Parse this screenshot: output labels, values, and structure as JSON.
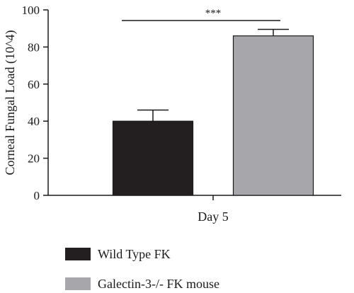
{
  "chart_data": {
    "type": "bar",
    "categories": [
      "Day 5"
    ],
    "ylabel": "Corneal Fungal Load (10^4)",
    "xlabel": "",
    "ylim": [
      0,
      100
    ],
    "yticks": [
      0,
      20,
      40,
      60,
      80,
      100
    ],
    "series": [
      {
        "name": "Wild Type FK",
        "values": [
          40
        ],
        "error": [
          6
        ],
        "color": "#231f20"
      },
      {
        "name": "Galectin-3-/- FK mouse",
        "values": [
          86
        ],
        "error": [
          3.5
        ],
        "color": "#a7a6ab"
      }
    ],
    "significance": {
      "label": "***",
      "between": [
        "Wild Type FK",
        "Galectin-3-/- FK mouse"
      ]
    },
    "legend_position": "bottom",
    "grid": false
  }
}
